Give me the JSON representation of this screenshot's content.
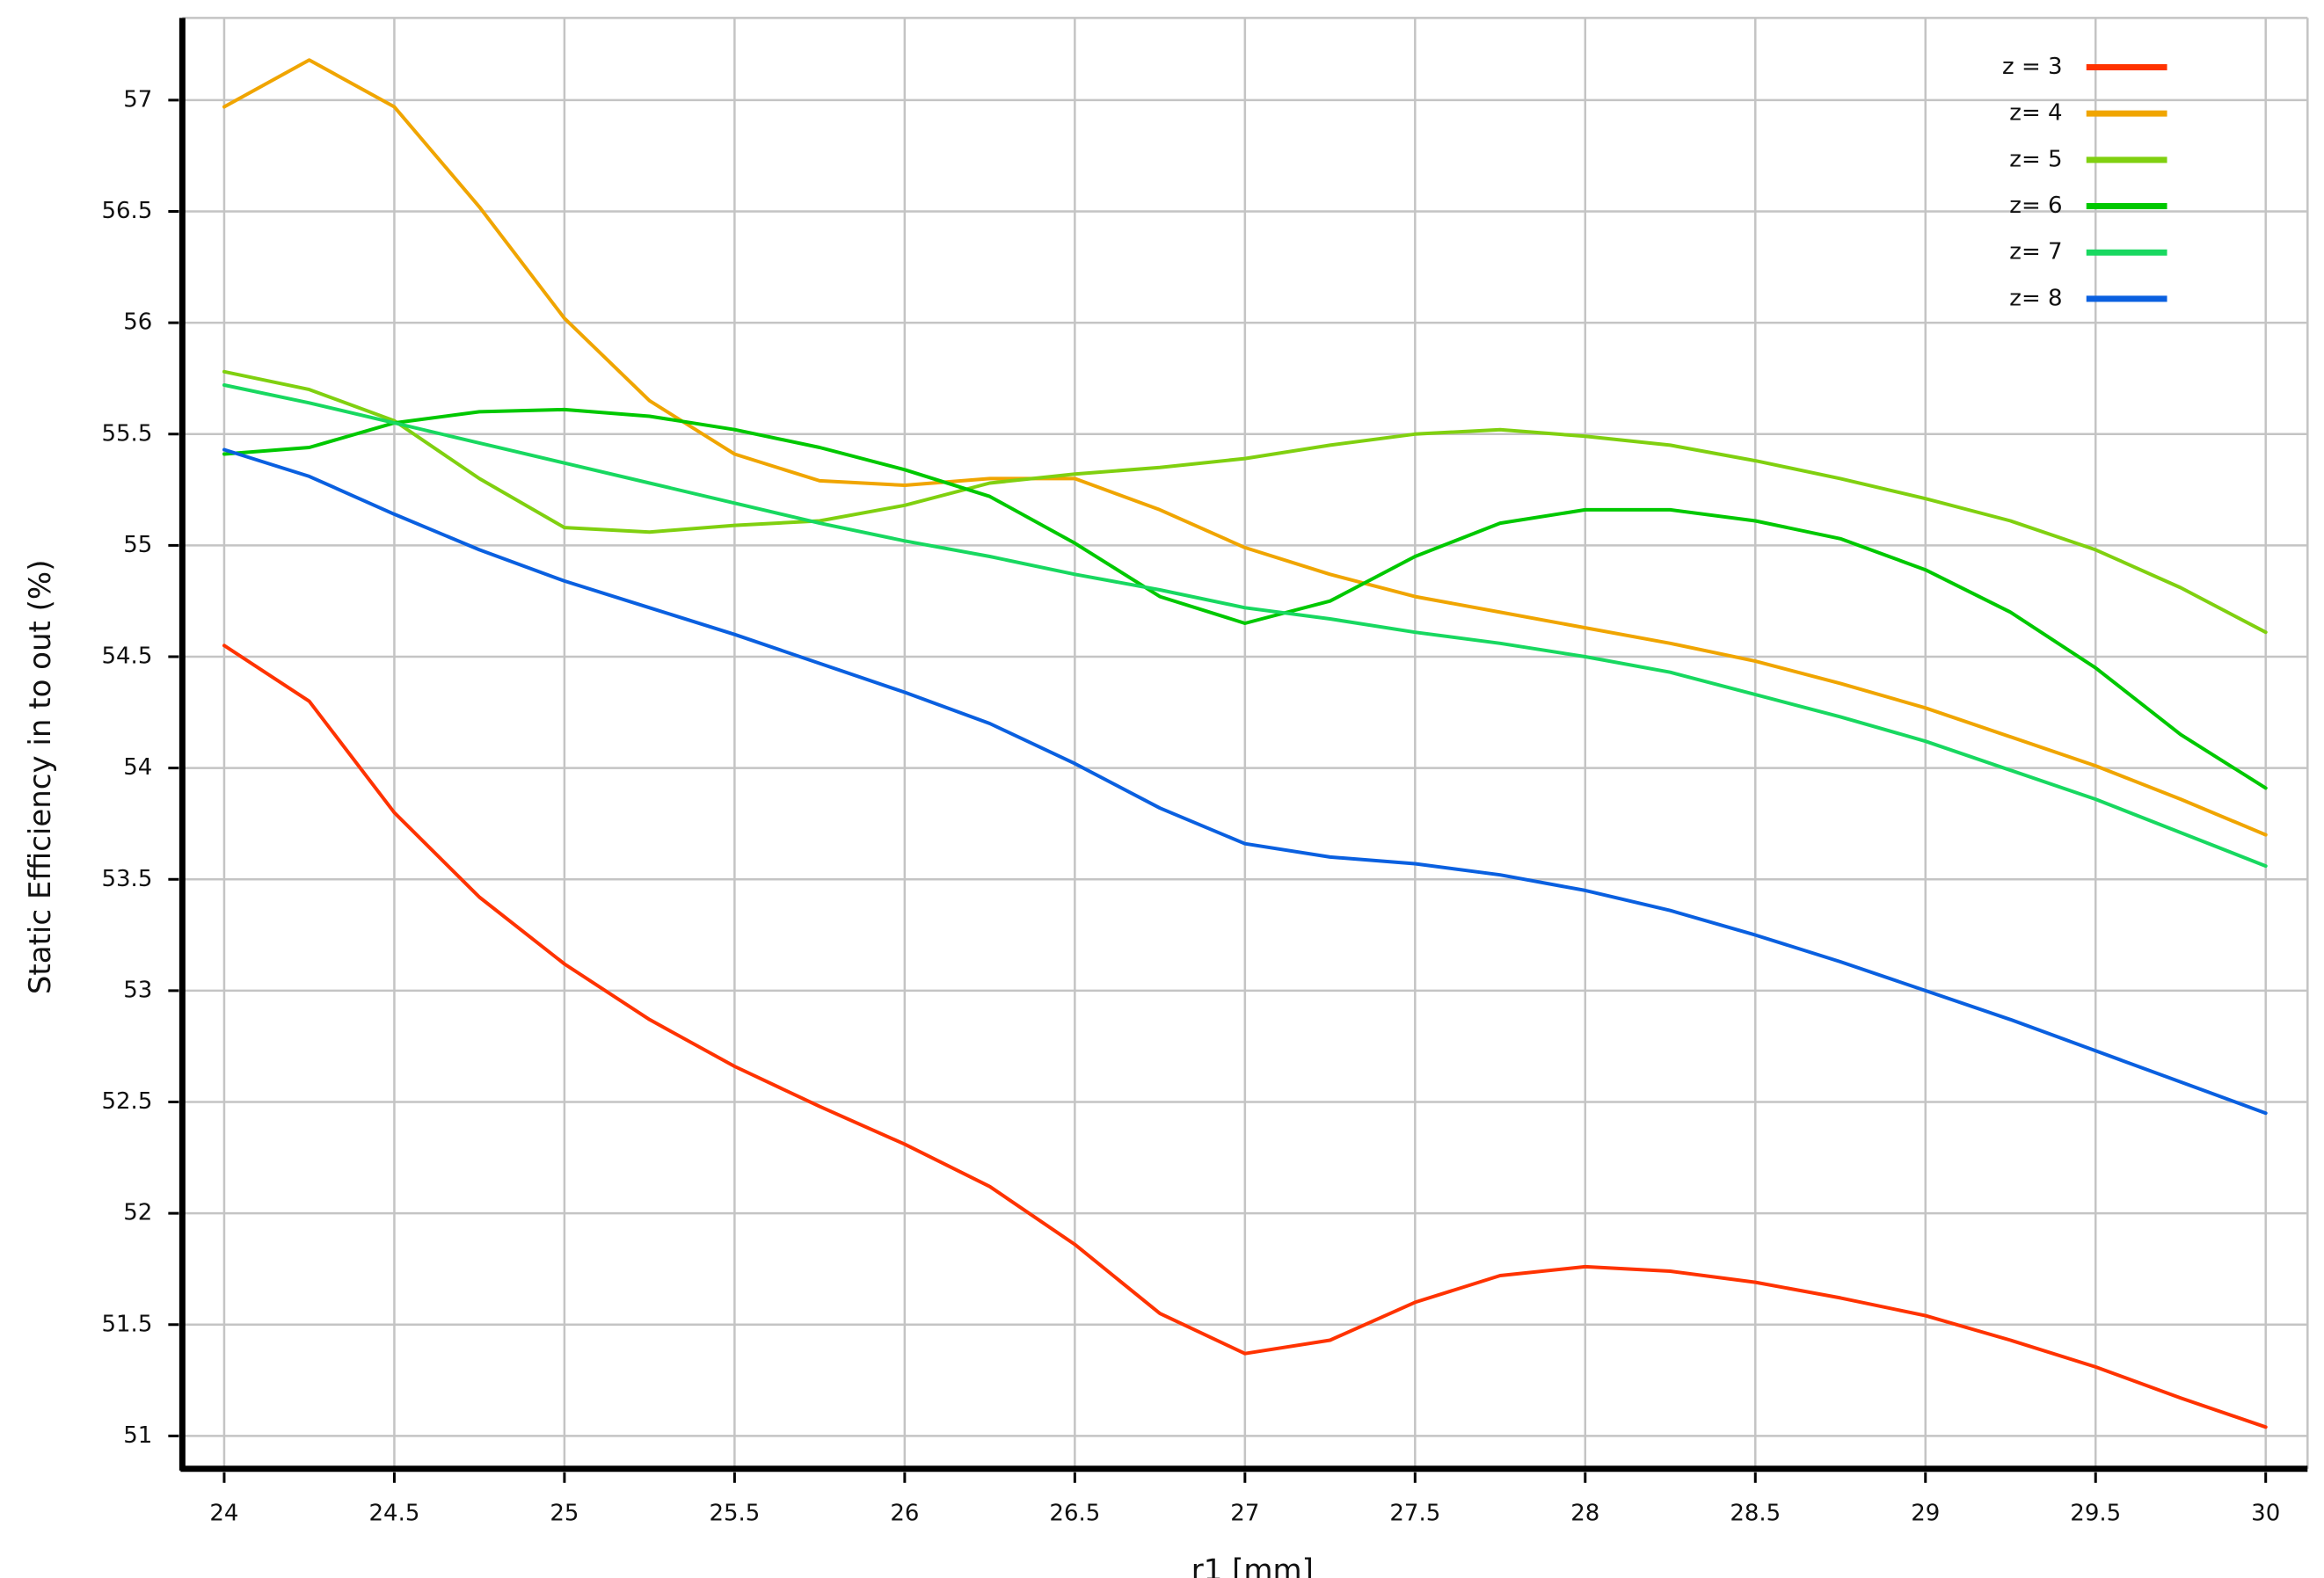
{
  "chart_data": {
    "type": "line",
    "title": "",
    "xlabel": "r1  [mm]",
    "ylabel": "Static Efficiency in to out (%)",
    "xlim": [
      24,
      30
    ],
    "ylim": [
      51,
      57.3
    ],
    "x_ticks": [
      24,
      24.5,
      25,
      25.5,
      26,
      26.5,
      27,
      27.5,
      28,
      28.5,
      29,
      29.5,
      30
    ],
    "x_tick_labels": [
      "24",
      "24.5",
      "25",
      "25.5",
      "26",
      "26.5",
      "27",
      "27.5",
      "28",
      "28.5",
      "29",
      "29.5",
      "30"
    ],
    "y_ticks": [
      51,
      51.5,
      52,
      52.5,
      53,
      53.5,
      54,
      54.5,
      55,
      55.5,
      56,
      56.5,
      57
    ],
    "y_tick_labels": [
      "51",
      "51.5",
      "52",
      "52.5",
      "53",
      "53.5",
      "54",
      "54.5",
      "55",
      "55.5",
      "56",
      "56.5",
      "57"
    ],
    "grid": true,
    "legend_position": "top-right",
    "x": [
      24,
      24.25,
      24.5,
      24.75,
      25,
      25.25,
      25.5,
      25.75,
      26,
      26.25,
      26.5,
      26.75,
      27,
      27.25,
      27.5,
      27.75,
      28,
      28.25,
      28.5,
      28.75,
      29,
      29.25,
      29.5,
      29.75,
      30
    ],
    "series": [
      {
        "name": "z = 3",
        "color": "#ff3300",
        "values": [
          54.55,
          54.3,
          53.8,
          53.42,
          53.12,
          52.87,
          52.66,
          52.48,
          52.31,
          52.12,
          51.86,
          51.55,
          51.37,
          51.43,
          51.6,
          51.72,
          51.76,
          51.74,
          51.69,
          51.62,
          51.54,
          51.43,
          51.31,
          51.17,
          51.04
        ]
      },
      {
        "name": "z= 4",
        "color": "#f0a500",
        "values": [
          56.97,
          57.18,
          56.97,
          56.52,
          56.02,
          55.65,
          55.41,
          55.29,
          55.27,
          55.3,
          55.3,
          55.16,
          54.99,
          54.87,
          54.77,
          54.7,
          54.63,
          54.56,
          54.48,
          54.38,
          54.27,
          54.14,
          54.01,
          53.86,
          53.7
        ]
      },
      {
        "name": "z= 5",
        "color": "#80d010",
        "values": [
          55.78,
          55.7,
          55.56,
          55.3,
          55.08,
          55.06,
          55.09,
          55.11,
          55.18,
          55.28,
          55.32,
          55.35,
          55.39,
          55.45,
          55.5,
          55.52,
          55.49,
          55.45,
          55.38,
          55.3,
          55.21,
          55.11,
          54.98,
          54.81,
          54.61
        ]
      },
      {
        "name": "z= 6",
        "color": "#00c800",
        "values": [
          55.41,
          55.44,
          55.55,
          55.6,
          55.61,
          55.58,
          55.52,
          55.44,
          55.34,
          55.22,
          55.01,
          54.77,
          54.65,
          54.75,
          54.95,
          55.1,
          55.16,
          55.16,
          55.11,
          55.03,
          54.89,
          54.7,
          54.45,
          54.15,
          53.91
        ]
      },
      {
        "name": "z= 7",
        "color": "#18d860",
        "values": [
          55.72,
          55.64,
          55.55,
          55.46,
          55.37,
          55.28,
          55.19,
          55.1,
          55.02,
          54.95,
          54.87,
          54.8,
          54.72,
          54.67,
          54.61,
          54.56,
          54.5,
          54.43,
          54.33,
          54.23,
          54.12,
          53.99,
          53.86,
          53.71,
          53.56
        ]
      },
      {
        "name": "z= 8",
        "color": "#0a60e0",
        "values": [
          55.43,
          55.31,
          55.14,
          54.98,
          54.84,
          54.72,
          54.6,
          54.47,
          54.34,
          54.2,
          54.02,
          53.82,
          53.66,
          53.6,
          53.57,
          53.52,
          53.45,
          53.36,
          53.25,
          53.13,
          53.0,
          52.87,
          52.73,
          52.59,
          52.45
        ]
      }
    ]
  }
}
